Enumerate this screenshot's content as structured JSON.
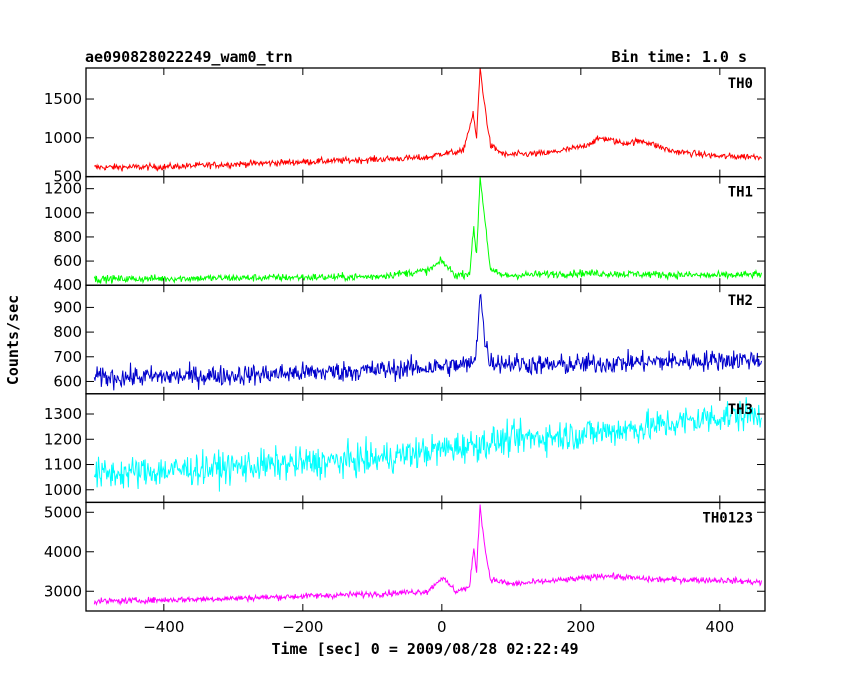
{
  "header": {
    "title": "ae090828022249_wam0_trn",
    "bin_time": "Bin time: 1.0 s"
  },
  "axes": {
    "xlabel": "Time [sec] 0 = 2009/08/28 02:22:49",
    "ylabel": "Counts/sec"
  },
  "chart_data": {
    "type": "line",
    "x_range": [
      -512,
      465
    ],
    "x_ticks": [
      -400,
      -200,
      0,
      200,
      400
    ],
    "x_tick_labels": [
      "−400",
      "−200",
      "0",
      "200",
      "400"
    ],
    "grid": false,
    "panels": [
      {
        "name": "TH0",
        "color": "#ff0000",
        "ylim": [
          500,
          1900
        ],
        "yticks": [
          500,
          1000,
          1500
        ],
        "points": [
          [
            -500,
            620
          ],
          [
            -400,
            625
          ],
          [
            -300,
            660
          ],
          [
            -200,
            690
          ],
          [
            -100,
            720
          ],
          [
            -20,
            745
          ],
          [
            0,
            800
          ],
          [
            30,
            820
          ],
          [
            45,
            1300
          ],
          [
            50,
            1000
          ],
          [
            55,
            1900
          ],
          [
            62,
            1400
          ],
          [
            70,
            900
          ],
          [
            90,
            780
          ],
          [
            150,
            800
          ],
          [
            200,
            880
          ],
          [
            230,
            1000
          ],
          [
            260,
            930
          ],
          [
            290,
            960
          ],
          [
            330,
            830
          ],
          [
            400,
            760
          ],
          [
            460,
            760
          ]
        ],
        "noise": 30
      },
      {
        "name": "TH1",
        "color": "#00ff00",
        "ylim": [
          400,
          1300
        ],
        "yticks": [
          400,
          600,
          800,
          1000,
          1200
        ],
        "points": [
          [
            -500,
            450
          ],
          [
            -300,
            460
          ],
          [
            -100,
            470
          ],
          [
            -20,
            520
          ],
          [
            0,
            600
          ],
          [
            20,
            480
          ],
          [
            40,
            500
          ],
          [
            46,
            870
          ],
          [
            50,
            650
          ],
          [
            55,
            1300
          ],
          [
            62,
            950
          ],
          [
            70,
            520
          ],
          [
            90,
            480
          ],
          [
            200,
            500
          ],
          [
            300,
            490
          ],
          [
            400,
            480
          ],
          [
            460,
            490
          ]
        ],
        "noise": 22
      },
      {
        "name": "TH2",
        "color": "#0000cc",
        "ylim": [
          550,
          990
        ],
        "yticks": [
          600,
          700,
          800,
          900
        ],
        "points": [
          [
            -500,
            615
          ],
          [
            -300,
            625
          ],
          [
            -100,
            645
          ],
          [
            0,
            660
          ],
          [
            45,
            670
          ],
          [
            50,
            740
          ],
          [
            55,
            980
          ],
          [
            62,
            760
          ],
          [
            70,
            680
          ],
          [
            150,
            665
          ],
          [
            300,
            680
          ],
          [
            460,
            690
          ]
        ],
        "noise": 30
      },
      {
        "name": "TH3",
        "color": "#00ffff",
        "ylim": [
          950,
          1380
        ],
        "yticks": [
          1000,
          1100,
          1200,
          1300
        ],
        "points": [
          [
            -500,
            1060
          ],
          [
            -300,
            1090
          ],
          [
            -100,
            1120
          ],
          [
            0,
            1160
          ],
          [
            100,
            1200
          ],
          [
            200,
            1220
          ],
          [
            300,
            1250
          ],
          [
            400,
            1290
          ],
          [
            460,
            1300
          ]
        ],
        "noise": 45
      },
      {
        "name": "TH0123",
        "color": "#ff00ff",
        "ylim": [
          2500,
          5250
        ],
        "yticks": [
          3000,
          4000,
          5000
        ],
        "points": [
          [
            -500,
            2740
          ],
          [
            -300,
            2820
          ],
          [
            -100,
            2930
          ],
          [
            -20,
            3000
          ],
          [
            0,
            3350
          ],
          [
            20,
            3000
          ],
          [
            40,
            3100
          ],
          [
            46,
            4100
          ],
          [
            50,
            3500
          ],
          [
            55,
            5200
          ],
          [
            62,
            4100
          ],
          [
            70,
            3300
          ],
          [
            100,
            3180
          ],
          [
            200,
            3320
          ],
          [
            230,
            3400
          ],
          [
            300,
            3300
          ],
          [
            400,
            3280
          ],
          [
            460,
            3230
          ]
        ],
        "noise": 55
      }
    ]
  }
}
